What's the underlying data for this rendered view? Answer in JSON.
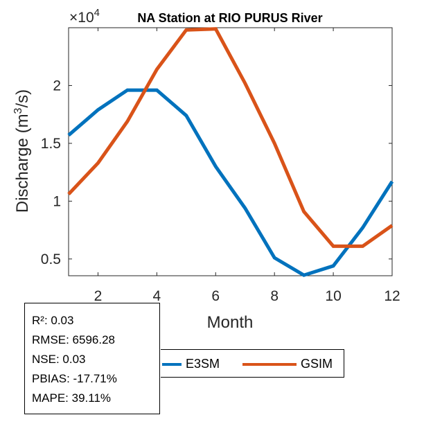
{
  "chart_data": {
    "type": "line",
    "title": "NA  Station at  RIO PURUS  River",
    "xlabel": "Month",
    "ylabel_pre": "Discharge (m",
    "ylabel_sup": "3",
    "ylabel_post": "/s)",
    "y_exponent_prefix": "×10",
    "y_exponent_power": "4",
    "xlim": [
      1,
      12
    ],
    "ylim": [
      0.355,
      2.5
    ],
    "xticks": [
      2,
      4,
      6,
      8,
      10,
      12
    ],
    "xtick_labels": [
      "2",
      "4",
      "6",
      "8",
      "10",
      "12"
    ],
    "yticks": [
      0.5,
      1,
      1.5,
      2
    ],
    "ytick_labels": [
      "0.5",
      "1",
      "1.5",
      "2"
    ],
    "x": [
      1,
      2,
      3,
      4,
      5,
      6,
      7,
      8,
      9,
      10,
      11,
      12
    ],
    "series": [
      {
        "name": "E3SM",
        "color": "#0072BD",
        "values": [
          1.57,
          1.79,
          1.96,
          1.96,
          1.74,
          1.3,
          0.94,
          0.51,
          0.36,
          0.44,
          0.77,
          1.17
        ]
      },
      {
        "name": "GSIM",
        "color": "#D95319",
        "values": [
          1.06,
          1.33,
          1.69,
          2.14,
          2.48,
          2.49,
          2.02,
          1.5,
          0.91,
          0.61,
          0.61,
          0.79
        ]
      }
    ]
  },
  "stats": {
    "r2": "R²: 0.03",
    "rmse": "RMSE: 6596.28",
    "nse": "NSE: 0.03",
    "pbias": "PBIAS: -17.71%",
    "mape": "MAPE: 39.11%"
  },
  "legend": {
    "e3sm_label": "E3SM",
    "gsim_label": "GSIM",
    "e3sm_color": "#0072BD",
    "gsim_color": "#D95319"
  }
}
